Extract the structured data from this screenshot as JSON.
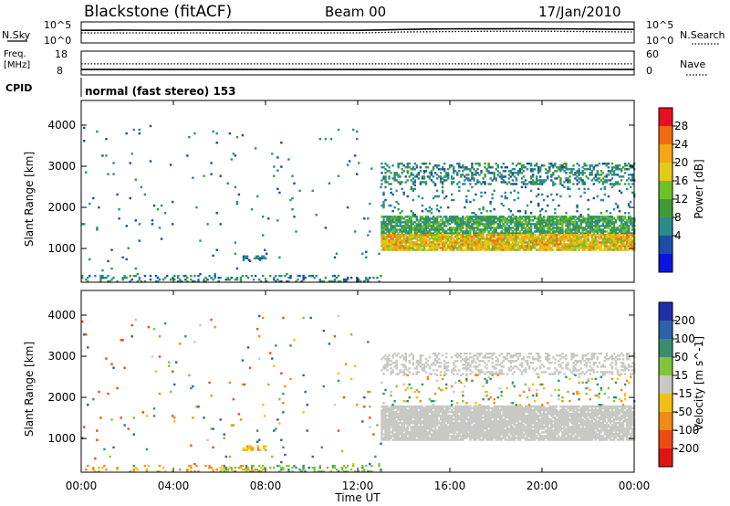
{
  "header": {
    "station": "Blackstone (fitACF)",
    "beam": "Beam 00",
    "date": "17/Jan/2010"
  },
  "noise_panel": {
    "left_label": "N.Sky",
    "right_label": "N.Search",
    "left_ticks": [
      "10^5",
      "10^0"
    ],
    "right_ticks": [
      "10^5",
      "10^0"
    ]
  },
  "freq_panel": {
    "left_label_line1": "Freq.",
    "left_label_line2": "[MHz]",
    "right_label": "Nave",
    "left_ticks": [
      "18",
      "8"
    ],
    "right_ticks": [
      "60",
      "0"
    ]
  },
  "cpid": {
    "label": "CPID",
    "value": "normal (fast stereo) 153"
  },
  "x_axis": {
    "label": "Time UT",
    "ticks": [
      "00:00",
      "04:00",
      "08:00",
      "12:00",
      "16:00",
      "20:00",
      "00:00"
    ]
  },
  "power_colorbar": {
    "label": "Power [dB]",
    "ticks": [
      "28",
      "24",
      "20",
      "16",
      "12",
      "8",
      "4"
    ],
    "colors": [
      "#e8101e",
      "#f46a10",
      "#f5a614",
      "#e4c81a",
      "#6fc12a",
      "#3f9a3a",
      "#2a8c8a",
      "#1c4ea8",
      "#0a14e0"
    ]
  },
  "velocity_colorbar": {
    "label": "Velocity [m s^-1]",
    "ticks": [
      "200",
      "100",
      "50",
      "15",
      "-15",
      "-50",
      "-100",
      "-200"
    ],
    "colors": [
      "#1f2fa8",
      "#2c62a8",
      "#3a8f6a",
      "#7fc63a",
      "#c8c8c4",
      "#f2c014",
      "#f08a14",
      "#ee4a14",
      "#e01414"
    ]
  },
  "chart_data": [
    {
      "type": "line",
      "title": "",
      "xlabel": "",
      "ylabel": "N.Sky",
      "x_range_hours": [
        0,
        24
      ],
      "series": [
        {
          "name": "N.Sky",
          "style": "solid",
          "x": [
            0,
            1,
            2,
            3,
            4,
            5,
            6,
            7,
            8,
            9,
            10,
            11,
            12,
            13,
            14,
            15,
            16,
            17,
            18,
            19,
            20,
            21,
            22,
            23,
            24
          ],
          "values": [
            1000,
            1000,
            1100,
            1000,
            1000,
            1100,
            1000,
            1100,
            1000,
            1000,
            1000,
            1000,
            1000,
            1200,
            1600,
            2000,
            2200,
            2300,
            2300,
            2400,
            2300,
            2200,
            2000,
            1800,
            1700
          ]
        },
        {
          "name": "N.Search",
          "style": "dotted",
          "x": [
            0,
            2,
            4,
            6,
            8,
            10,
            12,
            13,
            14,
            16,
            18,
            20,
            22,
            24
          ],
          "values": [
            250,
            250,
            250,
            250,
            250,
            250,
            250,
            300,
            400,
            500,
            600,
            600,
            500,
            400
          ]
        }
      ]
    },
    {
      "type": "line",
      "title": "",
      "xlabel": "",
      "ylabel": "Freq. [MHz]",
      "x_range_hours": [
        0,
        24
      ],
      "series": [
        {
          "name": "Freq.",
          "style": "solid",
          "x": [
            0,
            24
          ],
          "values": [
            10.3,
            10.3
          ]
        },
        {
          "name": "Nave",
          "style": "dotted",
          "x": [
            0,
            24
          ],
          "values": [
            28,
            28
          ]
        }
      ]
    },
    {
      "type": "heatmap",
      "title": "",
      "xlabel": "",
      "ylabel": "Slant Range [km]",
      "y_ticks": [
        1000,
        2000,
        3000,
        4000
      ],
      "ylim": [
        180,
        4600
      ],
      "x_range_hours": [
        0,
        24
      ],
      "quantity": "Power [dB]",
      "regions": [
        {
          "t0": 0,
          "t1": 13,
          "r0": 180,
          "r1": 4000,
          "level_min": 3,
          "level_max": 10,
          "density": 0.012
        },
        {
          "t0": 0,
          "t1": 13,
          "r0": 180,
          "r1": 350,
          "level_min": 3,
          "level_max": 12,
          "density": 0.25
        },
        {
          "t0": 7,
          "t1": 8,
          "r0": 700,
          "r1": 820,
          "level_min": 4,
          "level_max": 9,
          "density": 0.5
        },
        {
          "t0": 13,
          "t1": 24,
          "r0": 1350,
          "r1": 1800,
          "level_min": 6,
          "level_max": 16,
          "density": 0.8
        },
        {
          "t0": 13,
          "t1": 24,
          "r0": 950,
          "r1": 1350,
          "level_min": 14,
          "level_max": 26,
          "density": 0.9
        },
        {
          "t0": 13,
          "t1": 24,
          "r0": 2550,
          "r1": 3050,
          "level_min": 4,
          "level_max": 12,
          "density": 0.35
        },
        {
          "t0": 13,
          "t1": 24,
          "r0": 1800,
          "r1": 2550,
          "level_min": 4,
          "level_max": 10,
          "density": 0.08
        }
      ]
    },
    {
      "type": "heatmap",
      "title": "",
      "xlabel": "Time UT",
      "ylabel": "Slant Range [km]",
      "y_ticks": [
        1000,
        2000,
        3000,
        4000
      ],
      "ylim": [
        180,
        4600
      ],
      "x_range_hours": [
        0,
        24
      ],
      "quantity": "Velocity [m s^-1]",
      "regions": [
        {
          "t0": 0,
          "t1": 13,
          "r0": 180,
          "r1": 4000,
          "level_min": -200,
          "level_max": 200,
          "density": 0.012
        },
        {
          "t0": 6,
          "t1": 13,
          "r0": 180,
          "r1": 350,
          "level_min": 15,
          "level_max": 60,
          "density": 0.3
        },
        {
          "t0": 0,
          "t1": 8,
          "r0": 180,
          "r1": 350,
          "level_min": -80,
          "level_max": -15,
          "density": 0.15
        },
        {
          "t0": 7,
          "t1": 8,
          "r0": 700,
          "r1": 820,
          "level_min": -60,
          "level_max": -20,
          "density": 0.5
        },
        {
          "t0": 13,
          "t1": 24,
          "r0": 950,
          "r1": 1800,
          "level_min": -15,
          "level_max": 15,
          "density": 0.9
        },
        {
          "t0": 13,
          "t1": 24,
          "r0": 2550,
          "r1": 3050,
          "level_min": -15,
          "level_max": 15,
          "density": 0.35
        },
        {
          "t0": 13,
          "t1": 24,
          "r0": 1800,
          "r1": 2550,
          "level_min": -100,
          "level_max": 100,
          "density": 0.08
        }
      ]
    }
  ]
}
